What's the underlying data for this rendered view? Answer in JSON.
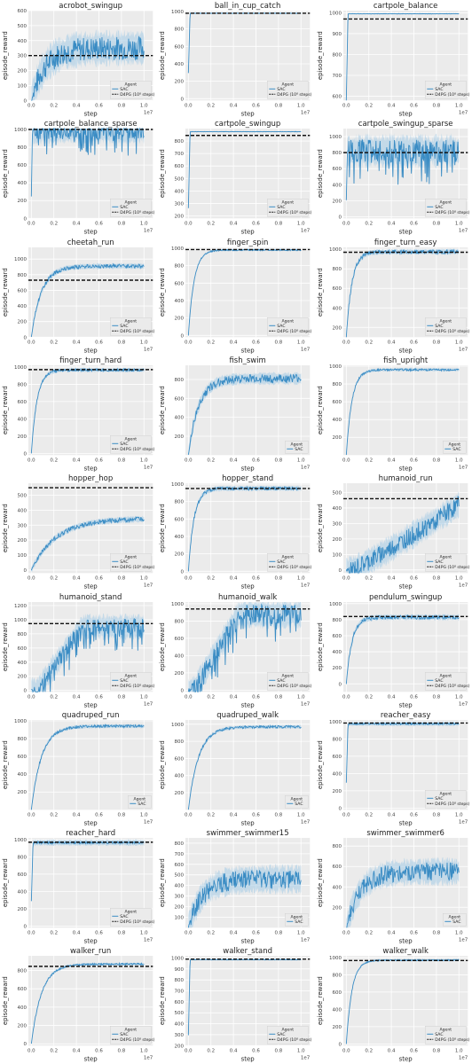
{
  "legend_title": "Agent",
  "agent_label": "SAC",
  "baseline_label": "D4PG (10⁸ steps)",
  "xlabel": "step",
  "ylabel": "episode_reward",
  "x_exponent": "1e7",
  "x_ticks": [
    "0.0",
    "0.2",
    "0.4",
    "0.6",
    "0.8",
    "1.0"
  ],
  "colors": {
    "sac": "#3a8cc4",
    "band": "#a9cde6",
    "baseline": "#111111",
    "panel_bg": "#ebebeb",
    "grid": "#ffffff"
  },
  "chart_data": [
    {
      "type": "line",
      "title": "acrobot_swingup",
      "ylim": [
        0,
        600
      ],
      "yticks": [
        0,
        100,
        200,
        300,
        400,
        500,
        600
      ],
      "baseline": 300,
      "curve": "noisy-rise",
      "final": 350,
      "noise": 80
    },
    {
      "type": "line",
      "title": "ball_in_cup_catch",
      "ylim": [
        -20,
        1010
      ],
      "yticks": [
        0,
        200,
        400,
        600,
        800,
        1000
      ],
      "baseline": 980,
      "curve": "fast",
      "final": 980,
      "noise": 4
    },
    {
      "type": "line",
      "title": "cartpole_balance",
      "ylim": [
        580,
        1010
      ],
      "yticks": [
        600,
        700,
        800,
        900,
        1000
      ],
      "baseline": 970,
      "curve": "fast",
      "final": 995,
      "noise": 2
    },
    {
      "type": "line",
      "title": "cartpole_balance_sparse",
      "ylim": [
        0,
        1010
      ],
      "yticks": [
        0,
        200,
        400,
        600,
        800,
        1000
      ],
      "baseline": 1000,
      "curve": "spiky",
      "final": 990,
      "noise": 100
    },
    {
      "type": "line",
      "title": "cartpole_swingup",
      "ylim": [
        180,
        900
      ],
      "yticks": [
        200,
        300,
        400,
        500,
        600,
        700,
        800
      ],
      "baseline": 845,
      "curve": "fast",
      "final": 875,
      "noise": 3
    },
    {
      "type": "line",
      "title": "cartpole_swingup_sparse",
      "ylim": [
        -20,
        1100
      ],
      "yticks": [
        0,
        200,
        400,
        600,
        800,
        1000
      ],
      "baseline": 800,
      "curve": "spiky",
      "final": 820,
      "noise": 140
    },
    {
      "type": "line",
      "title": "cheetah_run",
      "ylim": [
        0,
        1150
      ],
      "yticks": [
        0,
        200,
        400,
        600,
        800,
        1000
      ],
      "baseline": 730,
      "curve": "rise",
      "final": 910,
      "noise": 25
    },
    {
      "type": "line",
      "title": "finger_spin",
      "ylim": [
        -20,
        1010
      ],
      "yticks": [
        0,
        200,
        400,
        600,
        800,
        1000
      ],
      "baseline": 985,
      "curve": "rise-fast",
      "final": 980,
      "noise": 8
    },
    {
      "type": "line",
      "title": "finger_turn_easy",
      "ylim": [
        100,
        1020
      ],
      "yticks": [
        200,
        400,
        600,
        800,
        1000
      ],
      "baseline": 970,
      "curve": "rise-fast",
      "final": 975,
      "noise": 20
    },
    {
      "type": "line",
      "title": "finger_turn_hard",
      "ylim": [
        -20,
        1020
      ],
      "yticks": [
        0,
        200,
        400,
        600,
        800,
        1000
      ],
      "baseline": 970,
      "curve": "rise-fast",
      "final": 965,
      "noise": 15
    },
    {
      "type": "line",
      "title": "fish_swim",
      "ylim": [
        0,
        950
      ],
      "yticks": [
        200,
        400,
        600,
        800
      ],
      "baseline": null,
      "curve": "rise",
      "final": 810,
      "noise": 45
    },
    {
      "type": "line",
      "title": "fish_upright",
      "ylim": [
        0,
        1010
      ],
      "yticks": [
        200,
        400,
        600,
        800,
        1000
      ],
      "baseline": null,
      "curve": "rise-fast",
      "final": 960,
      "noise": 12
    },
    {
      "type": "line",
      "title": "hopper_hop",
      "ylim": [
        -20,
        580
      ],
      "yticks": [
        0,
        100,
        200,
        300,
        400,
        500
      ],
      "baseline": 550,
      "curve": "rise-slow",
      "final": 340,
      "noise": 15
    },
    {
      "type": "line",
      "title": "hopper_stand",
      "ylim": [
        -20,
        1010
      ],
      "yticks": [
        0,
        200,
        400,
        600,
        800,
        1000
      ],
      "baseline": 950,
      "curve": "rise-fast",
      "final": 950,
      "noise": 20
    },
    {
      "type": "line",
      "title": "humanoid_run",
      "ylim": [
        -20,
        560
      ],
      "yticks": [
        0,
        100,
        200,
        300,
        400,
        500
      ],
      "baseline": 460,
      "curve": "linear",
      "final": 420,
      "noise": 60
    },
    {
      "type": "line",
      "title": "humanoid_stand",
      "ylim": [
        -20,
        1250
      ],
      "yticks": [
        0,
        200,
        400,
        600,
        800,
        1000,
        1200
      ],
      "baseline": 945,
      "curve": "linear-spiky",
      "final": 900,
      "noise": 120
    },
    {
      "type": "line",
      "title": "humanoid_walk",
      "ylim": [
        -20,
        1020
      ],
      "yticks": [
        0,
        200,
        400,
        600,
        800,
        1000
      ],
      "baseline": 940,
      "curve": "linear-spiky",
      "final": 880,
      "noise": 110
    },
    {
      "type": "line",
      "title": "pendulum_swingup",
      "ylim": [
        -100,
        1020
      ],
      "yticks": [
        0,
        200,
        400,
        600,
        800,
        1000
      ],
      "baseline": 840,
      "curve": "rise-fast",
      "final": 830,
      "noise": 25
    },
    {
      "type": "line",
      "title": "quadruped_run",
      "ylim": [
        0,
        1010
      ],
      "yticks": [
        200,
        400,
        600,
        800,
        1000
      ],
      "baseline": null,
      "curve": "rise",
      "final": 940,
      "noise": 15
    },
    {
      "type": "line",
      "title": "quadruped_walk",
      "ylim": [
        0,
        1050
      ],
      "yticks": [
        200,
        400,
        600,
        800,
        1000
      ],
      "baseline": null,
      "curve": "rise",
      "final": 970,
      "noise": 15
    },
    {
      "type": "line",
      "title": "reacher_easy",
      "ylim": [
        -20,
        1020
      ],
      "yticks": [
        0,
        200,
        400,
        600,
        800,
        1000
      ],
      "baseline": 985,
      "curve": "fast",
      "final": 975,
      "noise": 18
    },
    {
      "type": "line",
      "title": "reacher_hard",
      "ylim": [
        -20,
        1020
      ],
      "yticks": [
        0,
        200,
        400,
        600,
        800,
        1000
      ],
      "baseline": 970,
      "curve": "fast",
      "final": 965,
      "noise": 25
    },
    {
      "type": "line",
      "title": "swimmer_swimmer15",
      "ylim": [
        0,
        850
      ],
      "yticks": [
        100,
        200,
        300,
        400,
        500,
        600,
        700,
        800
      ],
      "baseline": null,
      "curve": "noisy-rise",
      "final": 460,
      "noise": 90
    },
    {
      "type": "line",
      "title": "swimmer_swimmer6",
      "ylim": [
        0,
        880
      ],
      "yticks": [
        200,
        400,
        600,
        800
      ],
      "baseline": null,
      "curve": "noisy-rise",
      "final": 550,
      "noise": 90
    },
    {
      "type": "line",
      "title": "walker_run",
      "ylim": [
        -20,
        960
      ],
      "yticks": [
        0,
        200,
        400,
        600,
        800
      ],
      "baseline": 845,
      "curve": "rise",
      "final": 870,
      "noise": 10
    },
    {
      "type": "line",
      "title": "walker_stand",
      "ylim": [
        200,
        1020
      ],
      "yticks": [
        200,
        300,
        400,
        500,
        600,
        700,
        800,
        900,
        1000
      ],
      "baseline": 990,
      "curve": "fast",
      "final": 985,
      "noise": 5
    },
    {
      "type": "line",
      "title": "walker_walk",
      "ylim": [
        -20,
        1020
      ],
      "yticks": [
        0,
        200,
        400,
        600,
        800,
        1000
      ],
      "baseline": 965,
      "curve": "rise-fast",
      "final": 970,
      "noise": 8
    }
  ]
}
